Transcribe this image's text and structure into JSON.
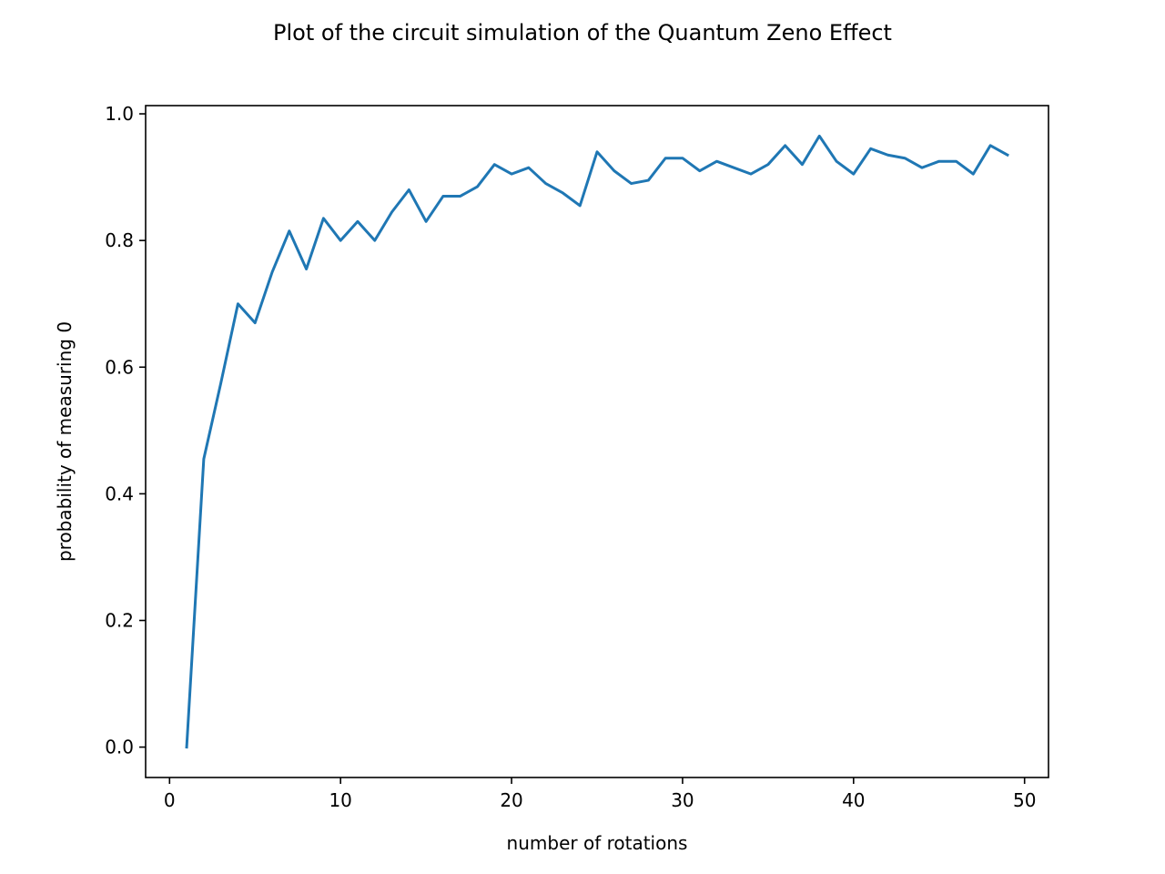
{
  "chart_data": {
    "type": "line",
    "title": "Plot of the circuit simulation of the Quantum Zeno Effect",
    "xlabel": "number of rotations",
    "ylabel": "probability of measuring 0",
    "xlim": [
      -1.4,
      51.4
    ],
    "ylim": [
      -0.048,
      1.013
    ],
    "xticks": [
      0,
      10,
      20,
      30,
      40,
      50
    ],
    "yticks": [
      0.0,
      0.2,
      0.4,
      0.6,
      0.8,
      1.0
    ],
    "grid": false,
    "line_color": "#1f77b4",
    "series": [
      {
        "x": [
          1,
          2,
          3,
          4,
          5,
          6,
          7,
          8,
          9,
          10,
          11,
          12,
          13,
          14,
          15,
          16,
          17,
          18,
          19,
          20,
          21,
          22,
          23,
          24,
          25,
          26,
          27,
          28,
          29,
          30,
          31,
          32,
          33,
          34,
          35,
          36,
          37,
          38,
          39,
          40,
          41,
          42,
          43,
          44,
          45,
          46,
          47,
          48,
          49
        ],
        "values": [
          0.0,
          0.455,
          0.575,
          0.7,
          0.67,
          0.75,
          0.815,
          0.755,
          0.835,
          0.8,
          0.83,
          0.8,
          0.845,
          0.88,
          0.83,
          0.87,
          0.87,
          0.885,
          0.92,
          0.905,
          0.915,
          0.89,
          0.875,
          0.855,
          0.94,
          0.91,
          0.89,
          0.895,
          0.93,
          0.93,
          0.91,
          0.925,
          0.915,
          0.905,
          0.92,
          0.95,
          0.92,
          0.965,
          0.925,
          0.905,
          0.945,
          0.935,
          0.93,
          0.915,
          0.925,
          0.925,
          0.905,
          0.95,
          0.935
        ]
      }
    ]
  }
}
